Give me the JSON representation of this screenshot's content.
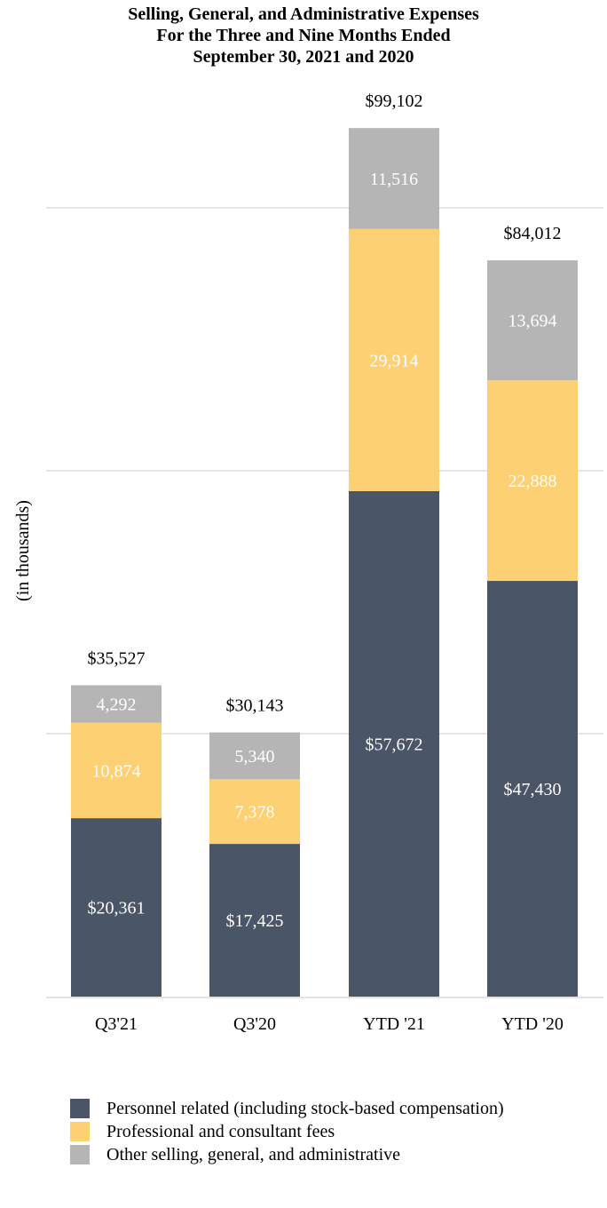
{
  "chart_data": {
    "type": "bar",
    "stacked": true,
    "title": [
      "Selling, General, and Administrative Expenses",
      "For the Three and Nine Months Ended",
      "September 30, 2021 and 2020"
    ],
    "ylabel": "(in thousands)",
    "xlabel": "",
    "categories": [
      "Q3'21",
      "Q3'20",
      "YTD '21",
      "YTD '20"
    ],
    "totals": [
      35527,
      30143,
      99102,
      84012
    ],
    "total_labels": [
      "$35,527",
      "$30,143",
      "$99,102",
      "$84,012"
    ],
    "ylim": [
      0,
      120000
    ],
    "grid": true,
    "legend_position": "bottom",
    "series": [
      {
        "name": "Personnel related (including stock-based compensation)",
        "color": "#4a5568",
        "values": [
          20361,
          17425,
          57672,
          47430
        ],
        "labels": [
          "$20,361",
          "$17,425",
          "$57,672",
          "$47,430"
        ]
      },
      {
        "name": "Professional and consultant fees",
        "color": "#fdd073",
        "values": [
          10874,
          7378,
          29914,
          22888
        ],
        "labels": [
          "10,874",
          "7,378",
          "29,914",
          "22,888"
        ]
      },
      {
        "name": "Other selling, general, and administrative",
        "color": "#b5b5b5",
        "values": [
          4292,
          5340,
          11516,
          13694
        ],
        "labels": [
          "4,292",
          "5,340",
          "11,516",
          "13,694"
        ]
      }
    ]
  }
}
